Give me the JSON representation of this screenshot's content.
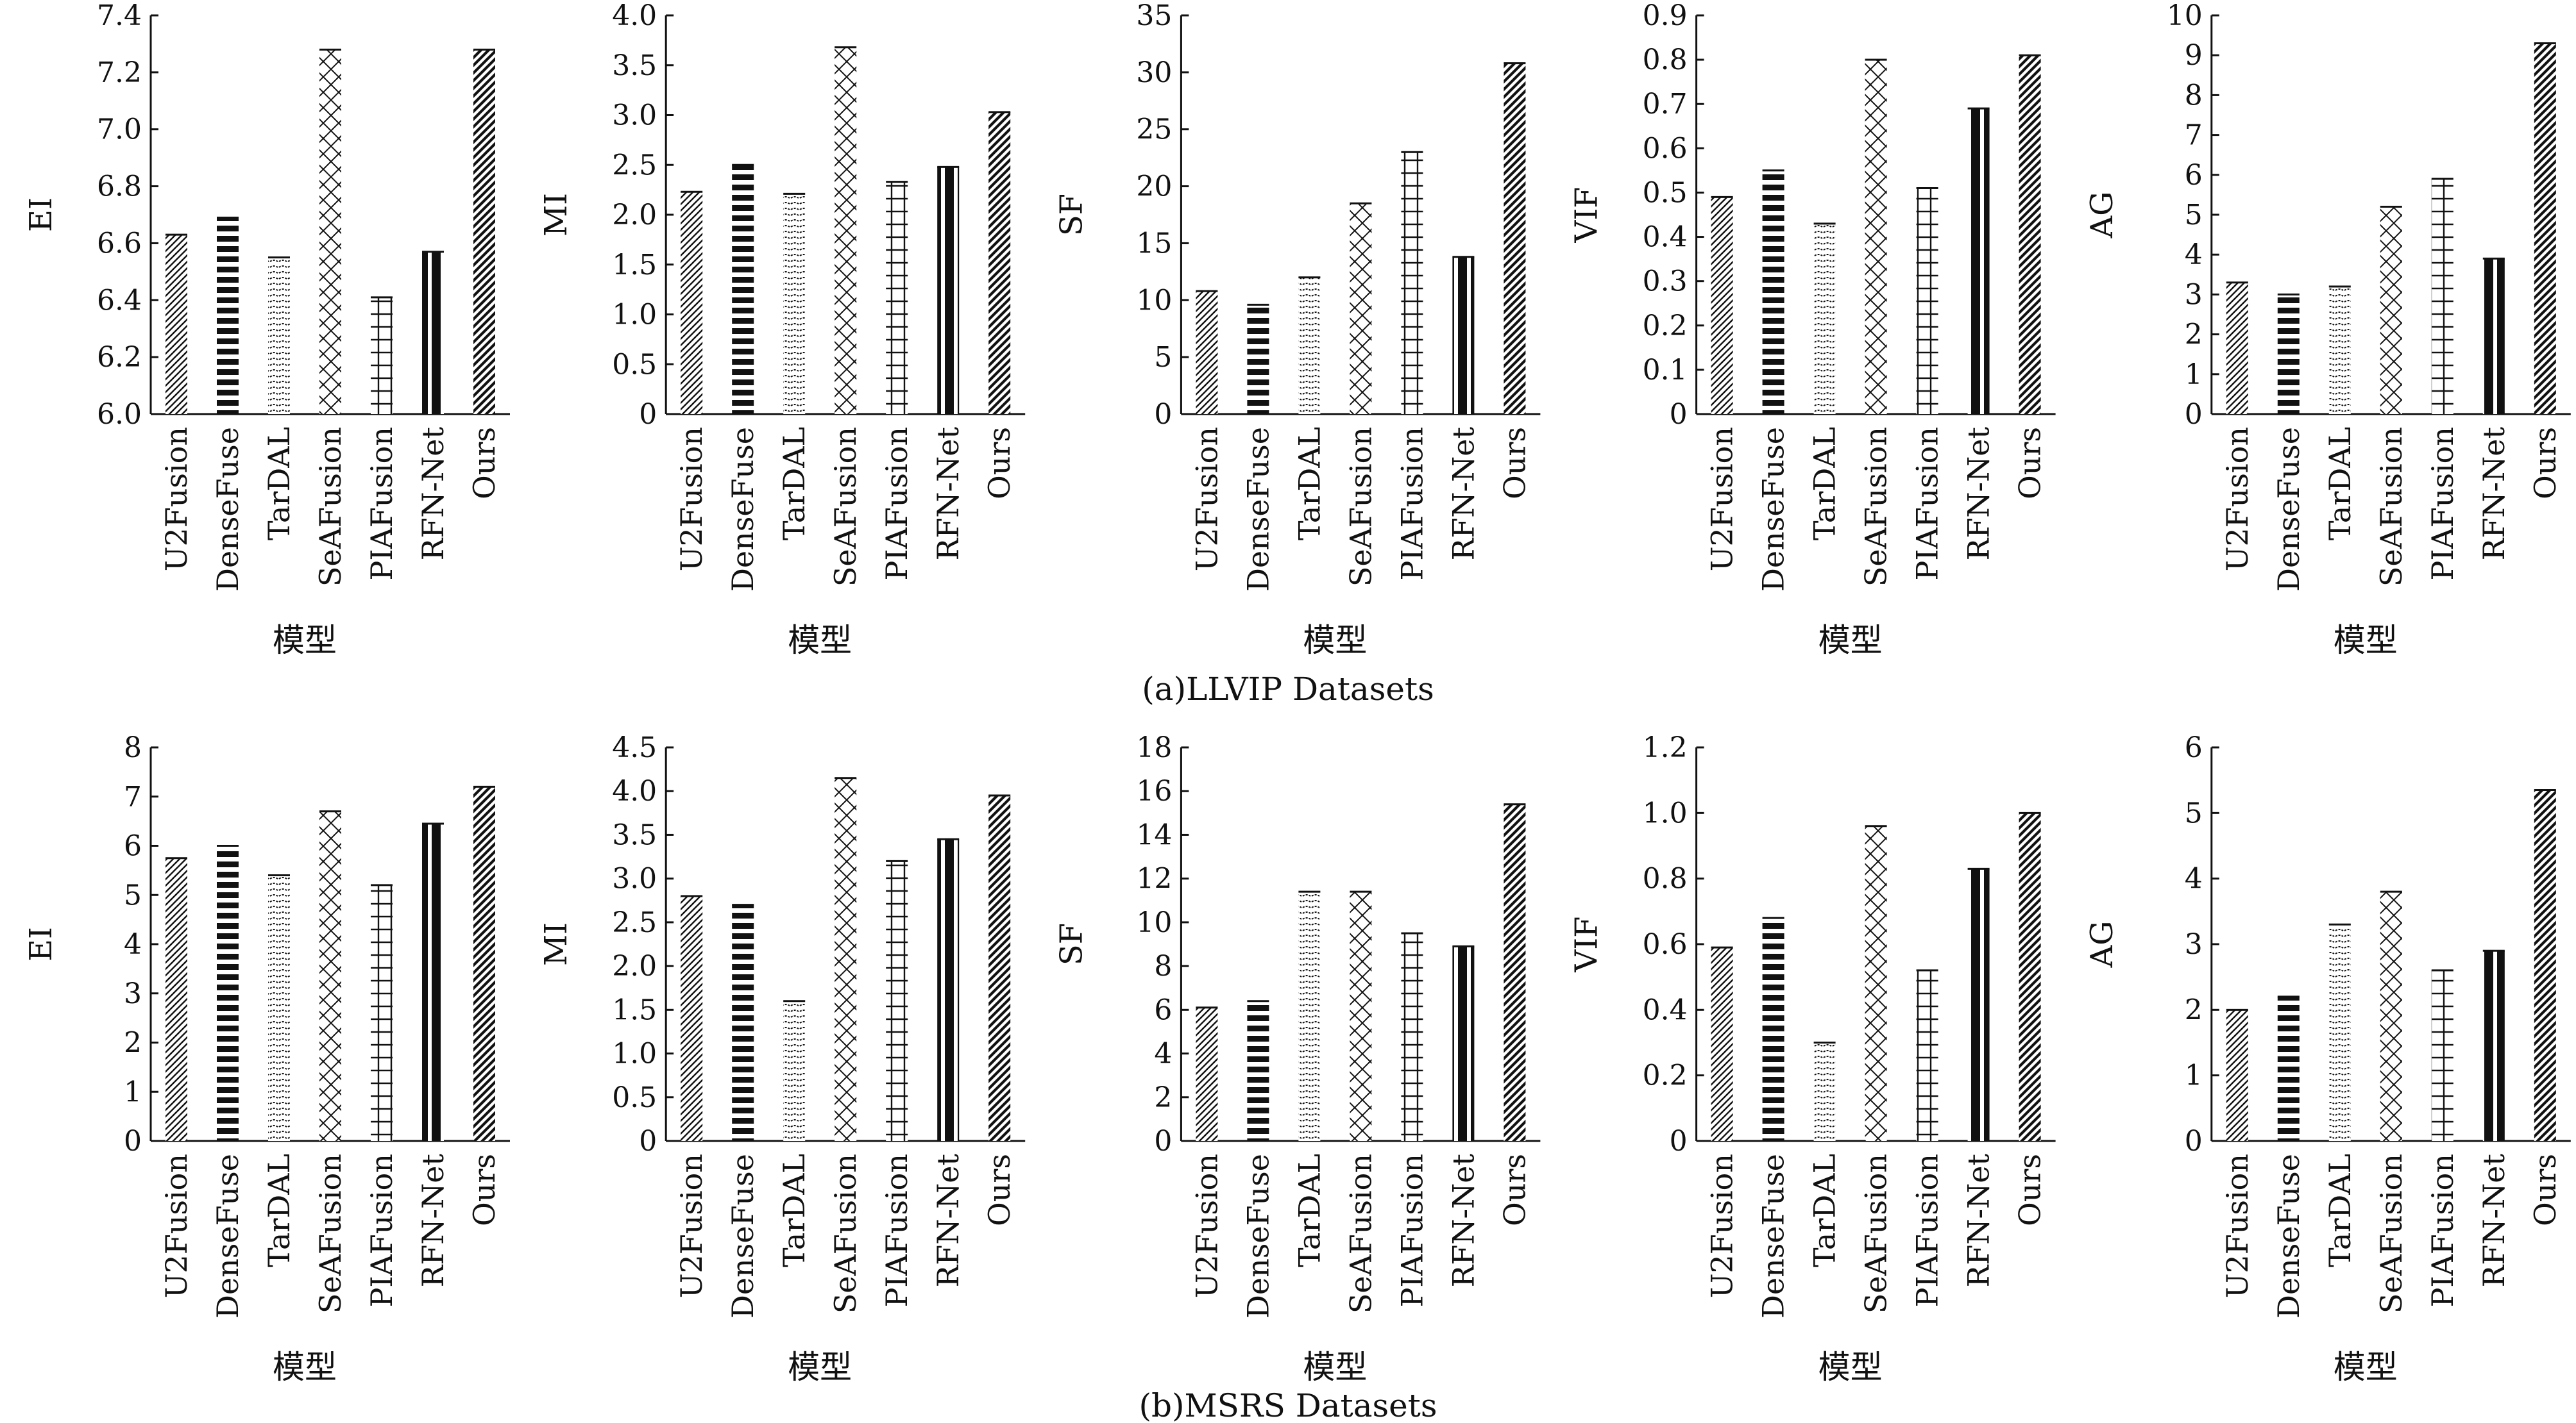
{
  "figure": {
    "captions": [
      "(a)LLVIP Datasets",
      "(b)MSRS Datasets"
    ]
  },
  "chart_data": [
    {
      "type": "bar",
      "panel": "a",
      "ylabel": "EI",
      "xlabel": "模型",
      "categories": [
        "U2Fusion",
        "DenseFuse",
        "TarDAL",
        "SeAFusion",
        "PIAFusion",
        "RFN-Net",
        "Ours"
      ],
      "values": [
        6.63,
        6.69,
        6.55,
        7.28,
        6.41,
        6.57,
        7.28
      ],
      "ylim": [
        6.0,
        7.4
      ],
      "yticks": [
        "6.0",
        "6.2",
        "6.4",
        "6.6",
        "6.8",
        "7.0",
        "7.2",
        "7.4"
      ],
      "grid": false
    },
    {
      "type": "bar",
      "panel": "a",
      "ylabel": "MI",
      "xlabel": "模型",
      "categories": [
        "U2Fusion",
        "DenseFuse",
        "TarDAL",
        "SeAFusion",
        "PIAFusion",
        "RFN-Net",
        "Ours"
      ],
      "values": [
        2.23,
        2.5,
        2.21,
        3.68,
        2.33,
        2.48,
        3.03
      ],
      "ylim": [
        0,
        4.0
      ],
      "yticks": [
        "0",
        "0.5",
        "1.0",
        "1.5",
        "2.0",
        "2.5",
        "3.0",
        "3.5",
        "4.0"
      ],
      "grid": false
    },
    {
      "type": "bar",
      "panel": "a",
      "ylabel": "SF",
      "xlabel": "模型",
      "categories": [
        "U2Fusion",
        "DenseFuse",
        "TarDAL",
        "SeAFusion",
        "PIAFusion",
        "RFN-Net",
        "Ours"
      ],
      "values": [
        10.8,
        9.6,
        12.0,
        18.5,
        23.0,
        13.8,
        30.8
      ],
      "ylim": [
        0,
        35
      ],
      "yticks": [
        "0",
        "5",
        "10",
        "15",
        "20",
        "25",
        "30",
        "35"
      ],
      "grid": false
    },
    {
      "type": "bar",
      "panel": "a",
      "ylabel": "VIF",
      "xlabel": "模型",
      "categories": [
        "U2Fusion",
        "DenseFuse",
        "TarDAL",
        "SeAFusion",
        "PIAFusion",
        "RFN-Net",
        "Ours"
      ],
      "values": [
        0.49,
        0.55,
        0.43,
        0.8,
        0.51,
        0.69,
        0.81
      ],
      "ylim": [
        0,
        0.9
      ],
      "yticks": [
        "0",
        "0.1",
        "0.2",
        "0.3",
        "0.4",
        "0.5",
        "0.6",
        "0.7",
        "0.8",
        "0.9"
      ],
      "grid": false
    },
    {
      "type": "bar",
      "panel": "a",
      "ylabel": "AG",
      "xlabel": "模型",
      "categories": [
        "U2Fusion",
        "DenseFuse",
        "TarDAL",
        "SeAFusion",
        "PIAFusion",
        "RFN-Net",
        "Ours"
      ],
      "values": [
        3.3,
        3.0,
        3.2,
        5.2,
        5.9,
        3.9,
        9.3
      ],
      "ylim": [
        0,
        10
      ],
      "yticks": [
        "0",
        "1",
        "2",
        "3",
        "4",
        "5",
        "6",
        "7",
        "8",
        "9",
        "10"
      ],
      "grid": false
    },
    {
      "type": "bar",
      "panel": "b",
      "ylabel": "EI",
      "xlabel": "模型",
      "categories": [
        "U2Fusion",
        "DenseFuse",
        "TarDAL",
        "SeAFusion",
        "PIAFusion",
        "RFN-Net",
        "Ours"
      ],
      "values": [
        5.75,
        6.0,
        5.4,
        6.7,
        5.2,
        6.45,
        7.2
      ],
      "ylim": [
        0,
        8
      ],
      "yticks": [
        "0",
        "1",
        "2",
        "3",
        "4",
        "5",
        "6",
        "7",
        "8"
      ],
      "grid": false
    },
    {
      "type": "bar",
      "panel": "b",
      "ylabel": "MI",
      "xlabel": "模型",
      "categories": [
        "U2Fusion",
        "DenseFuse",
        "TarDAL",
        "SeAFusion",
        "PIAFusion",
        "RFN-Net",
        "Ours"
      ],
      "values": [
        2.8,
        2.7,
        1.6,
        4.15,
        3.2,
        3.45,
        3.95
      ],
      "ylim": [
        0,
        4.5
      ],
      "yticks": [
        "0",
        "0.5",
        "1.0",
        "1.5",
        "2.0",
        "2.5",
        "3.0",
        "3.5",
        "4.0",
        "4.5"
      ],
      "grid": false
    },
    {
      "type": "bar",
      "panel": "b",
      "ylabel": "SF",
      "xlabel": "模型",
      "categories": [
        "U2Fusion",
        "DenseFuse",
        "TarDAL",
        "SeAFusion",
        "PIAFusion",
        "RFN-Net",
        "Ours"
      ],
      "values": [
        6.1,
        6.4,
        11.4,
        11.4,
        9.5,
        8.9,
        15.4
      ],
      "ylim": [
        0,
        18
      ],
      "yticks": [
        "0",
        "2",
        "4",
        "6",
        "8",
        "10",
        "12",
        "14",
        "16",
        "18"
      ],
      "grid": false
    },
    {
      "type": "bar",
      "panel": "b",
      "ylabel": "VIF",
      "xlabel": "模型",
      "categories": [
        "U2Fusion",
        "DenseFuse",
        "TarDAL",
        "SeAFusion",
        "PIAFusion",
        "RFN-Net",
        "Ours"
      ],
      "values": [
        0.59,
        0.68,
        0.3,
        0.96,
        0.52,
        0.83,
        1.0
      ],
      "ylim": [
        0,
        1.2
      ],
      "yticks": [
        "0",
        "0.2",
        "0.4",
        "0.6",
        "0.8",
        "1.0",
        "1.2"
      ],
      "grid": false
    },
    {
      "type": "bar",
      "panel": "b",
      "ylabel": "AG",
      "xlabel": "模型",
      "categories": [
        "U2Fusion",
        "DenseFuse",
        "TarDAL",
        "SeAFusion",
        "PIAFusion",
        "RFN-Net",
        "Ours"
      ],
      "values": [
        2.0,
        2.2,
        3.3,
        3.8,
        2.6,
        2.9,
        5.35
      ],
      "ylim": [
        0,
        6
      ],
      "yticks": [
        "0",
        "1",
        "2",
        "3",
        "4",
        "5",
        "6"
      ],
      "grid": false
    }
  ]
}
